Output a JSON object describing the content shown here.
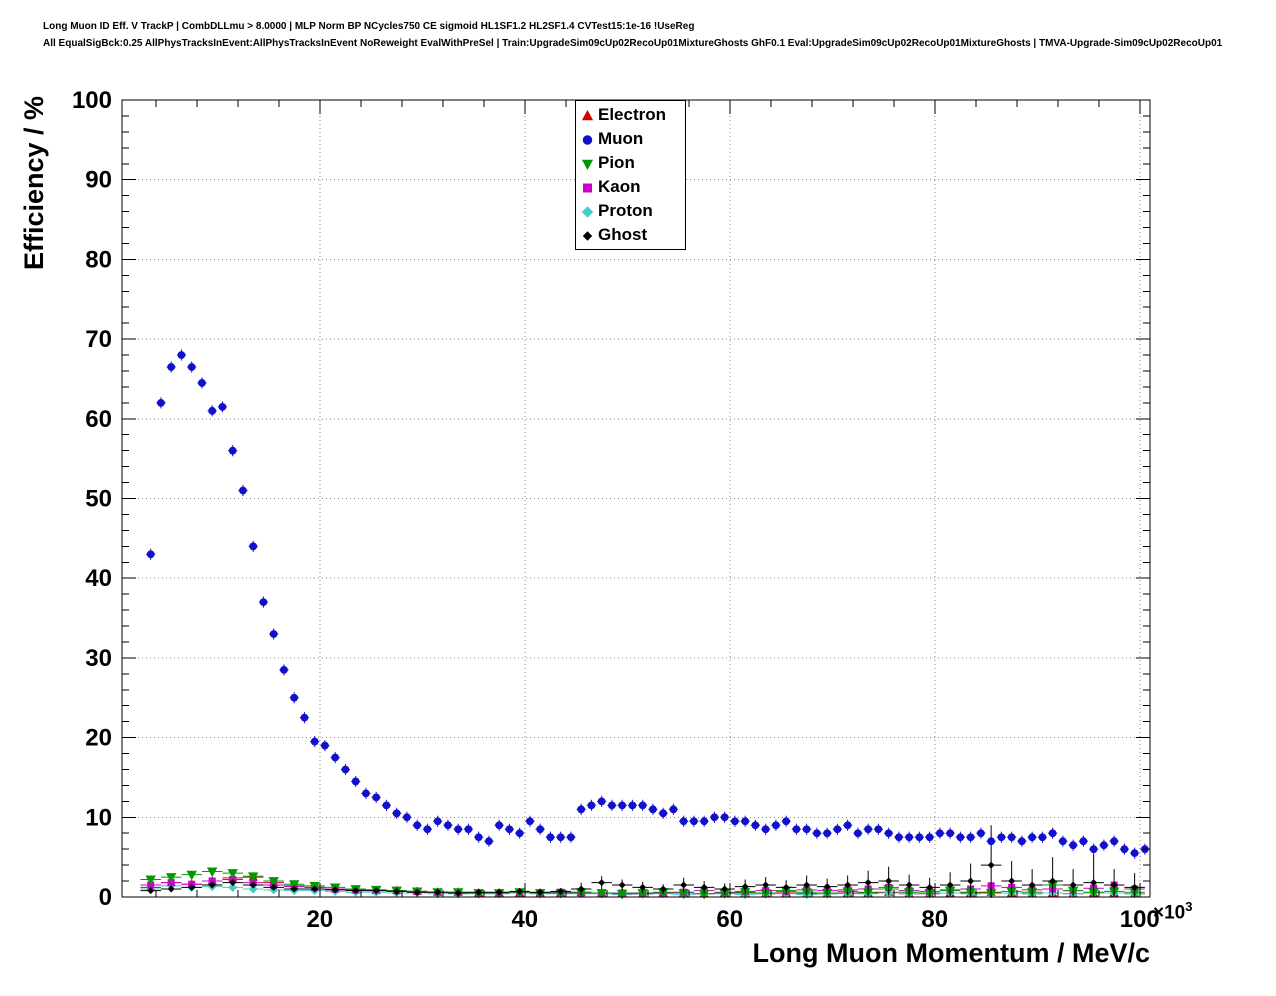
{
  "header": {
    "line1": "Long Muon ID Eff. V TrackP | CombDLLmu > 8.0000 | MLP Norm BP NCycles750 CE sigmoid HL1SF1.2 HL2SF1.4 CVTest15:1e-16 !UseReg",
    "line2": "All EqualSigBck:0.25 AllPhysTracksInEvent:AllPhysTracksInEvent NoReweight EvalWithPreSel | Train:UpgradeSim09cUp02RecoUp01MixtureGhosts GhF0.1 Eval:UpgradeSim09cUp02RecoUp01MixtureGhosts | TMVA-Upgrade-Sim09cUp02RecoUp01"
  },
  "chart_data": {
    "type": "scatter",
    "xlabel": "Long Muon Momentum / MeV/c",
    "ylabel": "Efficiency / %",
    "x_exponent_base": "×10",
    "x_exponent_sup": "3",
    "xlim": [
      0.7,
      101
    ],
    "ylim": [
      0,
      100
    ],
    "x_ticks": [
      20,
      40,
      60,
      80,
      100
    ],
    "y_ticks": [
      0,
      10,
      20,
      30,
      40,
      50,
      60,
      70,
      80,
      90,
      100
    ],
    "x_major_step": 20,
    "x_minor_step": 4,
    "y_major_step": 10,
    "y_minor_step": 2,
    "grid": true,
    "legend_position": "top-center",
    "x_units_note": "momentum values in units of 1000 MeV/c",
    "bg_x": [
      3.5,
      5.5,
      7.5,
      9.5,
      11.5,
      13.5,
      15.5,
      17.5,
      19.5,
      21.5,
      23.5,
      25.5,
      27.5,
      29.5,
      31.5,
      33.5,
      35.5,
      37.5,
      39.5,
      41.5,
      43.5,
      45.5,
      47.5,
      49.5,
      51.5,
      53.5,
      55.5,
      57.5,
      59.5,
      61.5,
      63.5,
      65.5,
      67.5,
      69.5,
      71.5,
      73.5,
      75.5,
      77.5,
      79.5,
      81.5,
      83.5,
      85.5,
      87.5,
      89.5,
      91.5,
      93.5,
      95.5,
      97.5,
      99.5
    ],
    "series": [
      {
        "name": "Electron",
        "color": "#cc0000",
        "marker": "triangle-up",
        "msize": 4,
        "zorder": 1,
        "xerr": 1,
        "yerr": 0.3,
        "x_ref": "bg_x",
        "y": [
          1.2,
          1.8,
          1.6,
          2.0,
          2.4,
          2.5,
          1.8,
          1.4,
          1.2,
          1.0,
          0.9,
          0.8,
          0.8,
          0.7,
          0.6,
          0.6,
          0.5,
          0.5,
          0.5,
          0.5,
          0.5,
          0.6,
          0.5,
          0.5,
          0.4,
          0.5,
          0.5,
          0.4,
          0.5,
          0.5,
          0.4,
          0.5,
          0.4,
          0.4,
          0.5,
          0.5,
          0.6,
          0.4,
          0.4,
          0.5,
          0.5,
          0.6,
          0.5,
          0.4,
          0.5,
          0.4,
          0.5,
          0.5,
          0.4
        ]
      },
      {
        "name": "Muon",
        "color": "#1111cc",
        "marker": "circle",
        "msize": 4,
        "zorder": 6,
        "xerr": 0.45,
        "yerr": 0.7,
        "x": [
          3.5,
          4.5,
          5.5,
          6.5,
          7.5,
          8.5,
          9.5,
          10.5,
          11.5,
          12.5,
          13.5,
          14.5,
          15.5,
          16.5,
          17.5,
          18.5,
          19.5,
          20.5,
          21.5,
          22.5,
          23.5,
          24.5,
          25.5,
          26.5,
          27.5,
          28.5,
          29.5,
          30.5,
          31.5,
          32.5,
          33.5,
          34.5,
          35.5,
          36.5,
          37.5,
          38.5,
          39.5,
          40.5,
          41.5,
          42.5,
          43.5,
          44.5,
          45.5,
          46.5,
          47.5,
          48.5,
          49.5,
          50.5,
          51.5,
          52.5,
          53.5,
          54.5,
          55.5,
          56.5,
          57.5,
          58.5,
          59.5,
          60.5,
          61.5,
          62.5,
          63.5,
          64.5,
          65.5,
          66.5,
          67.5,
          68.5,
          69.5,
          70.5,
          71.5,
          72.5,
          73.5,
          74.5,
          75.5,
          76.5,
          77.5,
          78.5,
          79.5,
          80.5,
          81.5,
          82.5,
          83.5,
          84.5,
          85.5,
          86.5,
          87.5,
          88.5,
          89.5,
          90.5,
          91.5,
          92.5,
          93.5,
          94.5,
          95.5,
          96.5,
          97.5,
          98.5,
          99.5,
          100.5
        ],
        "y": [
          43,
          62,
          66.5,
          68,
          66.5,
          64.5,
          61,
          61.5,
          56,
          51,
          44,
          37,
          33,
          28.5,
          25,
          22.5,
          19.5,
          19,
          17.5,
          16,
          14.5,
          13,
          12.5,
          11.5,
          10.5,
          10,
          9,
          8.5,
          9.5,
          9,
          8.5,
          8.5,
          7.5,
          7,
          9,
          8.5,
          8,
          9.5,
          8.5,
          7.5,
          7.5,
          7.5,
          11,
          11.5,
          12,
          11.5,
          11.5,
          11.5,
          11.5,
          11,
          10.5,
          11,
          9.5,
          9.5,
          9.5,
          10,
          10,
          9.5,
          9.5,
          9,
          8.5,
          9,
          9.5,
          8.5,
          8.5,
          8,
          8,
          8.5,
          9,
          8,
          8.5,
          8.5,
          8,
          7.5,
          7.5,
          7.5,
          7.5,
          8,
          8,
          7.5,
          7.5,
          8,
          7,
          7.5,
          7.5,
          7,
          7.5,
          7.5,
          8,
          7,
          6.5,
          7,
          6,
          6.5,
          7,
          6,
          5.5,
          6
        ]
      },
      {
        "name": "Pion",
        "color": "#009900",
        "marker": "triangle-down",
        "msize": 4.6,
        "zorder": 4,
        "xerr": 1,
        "yerr": 0.3,
        "x_ref": "bg_x",
        "y": [
          2.2,
          2.5,
          2.8,
          3.2,
          3.0,
          2.6,
          2.0,
          1.6,
          1.4,
          1.2,
          1.0,
          0.9,
          0.8,
          0.7,
          0.6,
          0.6,
          0.5,
          0.5,
          0.6,
          0.5,
          0.5,
          0.6,
          0.5,
          0.4,
          0.5,
          0.6,
          0.5,
          0.4,
          0.5,
          0.6,
          0.5,
          0.8,
          0.6,
          0.5,
          0.7,
          0.6,
          1.0,
          0.6,
          0.5,
          0.8,
          0.6,
          0.5,
          0.7,
          0.6,
          1.5,
          0.8,
          0.6,
          0.7,
          0.6
        ]
      },
      {
        "name": "Kaon",
        "color": "#cc00cc",
        "marker": "square",
        "msize": 3.8,
        "zorder": 3,
        "xerr": 1,
        "yerr": 0.3,
        "x_ref": "bg_x",
        "y": [
          1.5,
          1.8,
          1.6,
          2.0,
          2.2,
          1.8,
          1.5,
          1.3,
          1.2,
          1.0,
          0.9,
          0.9,
          0.8,
          0.7,
          0.6,
          0.6,
          0.5,
          0.5,
          0.6,
          0.5,
          0.6,
          0.5,
          0.5,
          0.5,
          0.4,
          0.5,
          0.6,
          0.8,
          0.6,
          0.7,
          0.8,
          0.7,
          0.9,
          0.8,
          0.9,
          1.0,
          1.2,
          0.8,
          0.7,
          0.9,
          1.0,
          1.4,
          1.2,
          0.9,
          1.0,
          0.8,
          1.1,
          1.5,
          1.0
        ]
      },
      {
        "name": "Proton",
        "color": "#44cccc",
        "marker": "diamond",
        "msize": 3.8,
        "zorder": 2,
        "xerr": 1,
        "yerr": 0.25,
        "x_ref": "bg_x",
        "y": [
          1.0,
          1.4,
          1.2,
          1.3,
          1.2,
          1.0,
          0.9,
          0.8,
          0.8,
          0.7,
          0.6,
          0.6,
          0.5,
          0.5,
          0.4,
          0.4,
          0.4,
          0.4,
          0.5,
          0.4,
          0.4,
          0.4,
          0.4,
          0.3,
          0.4,
          0.4,
          0.3,
          0.4,
          0.4,
          0.3,
          0.4,
          0.4,
          0.3,
          0.4,
          0.4,
          0.4,
          0.5,
          0.4,
          0.4,
          0.5,
          0.4,
          0.5,
          0.5,
          0.4,
          0.5,
          0.4,
          0.5,
          0.5,
          0.4
        ]
      },
      {
        "name": "Ghost",
        "color": "#000000",
        "marker": "diamond",
        "msize": 2.8,
        "zorder": 5,
        "xerr": 1,
        "x_ref": "bg_x",
        "y": [
          0.8,
          1.0,
          1.2,
          1.5,
          1.8,
          1.5,
          1.2,
          1.0,
          1.0,
          0.9,
          0.8,
          0.8,
          0.7,
          0.6,
          0.6,
          0.5,
          0.6,
          0.6,
          0.7,
          0.6,
          0.7,
          1.0,
          1.8,
          1.5,
          1.2,
          1.0,
          1.5,
          1.2,
          1.0,
          1.3,
          1.5,
          1.2,
          1.5,
          1.3,
          1.5,
          1.8,
          2.0,
          1.5,
          1.2,
          1.5,
          2.0,
          4.0,
          2.0,
          1.5,
          2.0,
          1.5,
          1.8,
          1.5,
          1.2
        ],
        "yerr": [
          0.3,
          0.3,
          0.3,
          0.3,
          0.3,
          0.3,
          0.3,
          0.3,
          0.3,
          0.3,
          0.3,
          0.3,
          0.3,
          0.3,
          0.3,
          0.3,
          0.3,
          0.3,
          0.4,
          0.4,
          0.4,
          0.8,
          0.8,
          0.7,
          0.7,
          0.6,
          0.9,
          0.8,
          0.7,
          0.9,
          1.0,
          0.9,
          1.2,
          1.0,
          1.2,
          1.5,
          1.8,
          1.3,
          1.2,
          1.6,
          2.2,
          5.0,
          2.5,
          2.0,
          3.0,
          2.0,
          3.5,
          2.0,
          1.8
        ]
      }
    ]
  }
}
